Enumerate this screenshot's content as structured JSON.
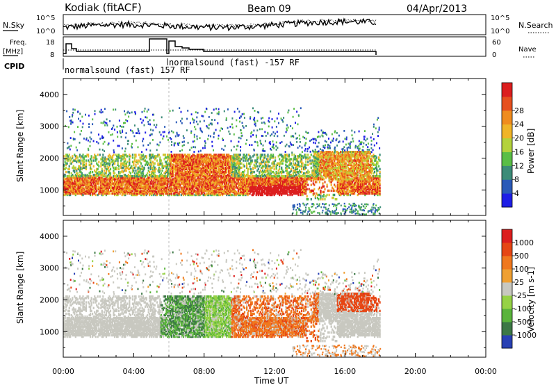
{
  "header": {
    "station": "Kodiak (fitACF)",
    "beam": "Beam 09",
    "date": "04/Apr/2013"
  },
  "noise_panel": {
    "left_label": "N.Sky",
    "right_label": "N.Search",
    "tick_top": "10^5",
    "tick_bottom": "10^0"
  },
  "freq_panel": {
    "left_label_1": "Freq.",
    "left_label_2": "[MHz]",
    "right_label": "Nave",
    "left_ticks": [
      "18",
      "8"
    ],
    "right_ticks": [
      "60",
      "0"
    ]
  },
  "cpid_panel": {
    "label": "CPID",
    "mode_1": "normalsound (fast) 157 RF",
    "mode_2": "normalsound (fast) -157 RF"
  },
  "chart_data": [
    {
      "type": "heatmap",
      "title": "",
      "ylabel": "Slant Range [km]",
      "xlabel": "Time UT",
      "y_ticks": [
        "1000",
        "2000",
        "3000",
        "4000"
      ],
      "x_ticks": [
        "00:00",
        "04:00",
        "08:00",
        "12:00",
        "16:00",
        "20:00",
        "00:00"
      ],
      "ylim": [
        200,
        4500
      ],
      "colorbar": {
        "label": "Power [dB]",
        "ticks": [
          "4",
          "8",
          "12",
          "16",
          "20",
          "24",
          "28"
        ],
        "colors": [
          "#1e1ee6",
          "#2a5ab8",
          "#3c8c78",
          "#5abe46",
          "#b4d23c",
          "#f0b428",
          "#f08c1e",
          "#e6501e",
          "#dc1e1e"
        ]
      }
    },
    {
      "type": "heatmap",
      "title": "",
      "ylabel": "Slant Range [km]",
      "xlabel": "Time UT",
      "y_ticks": [
        "1000",
        "2000",
        "3000",
        "4000"
      ],
      "x_ticks": [
        "00:00",
        "04:00",
        "08:00",
        "12:00",
        "16:00",
        "20:00",
        "00:00"
      ],
      "ylim": [
        200,
        4500
      ],
      "colorbar": {
        "label": "Velocity [m s-1]",
        "ticks": [
          "1000",
          "500",
          "100",
          "25",
          "-25",
          "-100",
          "-500",
          "-1000"
        ],
        "colors": [
          "#2840b4",
          "#3c7846",
          "#5ab43c",
          "#96d246",
          "#c8c8c0",
          "#f0a032",
          "#f0781e",
          "#e64614",
          "#dc1e1e"
        ]
      }
    }
  ]
}
